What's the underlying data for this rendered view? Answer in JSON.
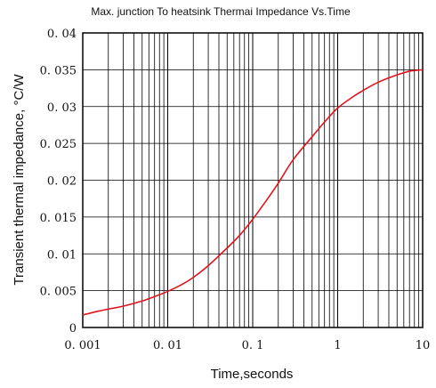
{
  "chart_data": {
    "type": "line",
    "title": "Max. junction To heatsink Thermai Impedance Vs.Time",
    "xlabel": "Time,seconds",
    "ylabel": "Transient thermal impedance, °C/W",
    "x_scale": "log",
    "xlim": [
      0.001,
      10
    ],
    "ylim": [
      0,
      0.04
    ],
    "x_ticks": [
      0.001,
      0.01,
      0.1,
      1,
      10
    ],
    "x_tick_labels": [
      "0. 001",
      "0. 01",
      "0. 1",
      "1",
      "10"
    ],
    "y_ticks": [
      0,
      0.005,
      0.01,
      0.015,
      0.02,
      0.025,
      0.03,
      0.035,
      0.04
    ],
    "y_tick_labels": [
      "0",
      "0. 005",
      "0. 01",
      "0. 015",
      "0. 02",
      "0. 025",
      "0. 03",
      "0. 035",
      "0. 04"
    ],
    "grid": true,
    "line_color": "#e0141e",
    "series": [
      {
        "x": [
          0.001,
          0.0015,
          0.002,
          0.003,
          0.005,
          0.007,
          0.01,
          0.015,
          0.02,
          0.03,
          0.05,
          0.07,
          0.1,
          0.15,
          0.2,
          0.3,
          0.5,
          0.7,
          1,
          1.5,
          2,
          3,
          5,
          7,
          10
        ],
        "y": [
          0.0017,
          0.0022,
          0.0025,
          0.0029,
          0.0036,
          0.0042,
          0.0049,
          0.0059,
          0.0068,
          0.0084,
          0.0108,
          0.0125,
          0.0147,
          0.0175,
          0.0196,
          0.0228,
          0.0259,
          0.0279,
          0.0298,
          0.0313,
          0.0322,
          0.0333,
          0.0343,
          0.0348,
          0.035
        ]
      }
    ]
  }
}
